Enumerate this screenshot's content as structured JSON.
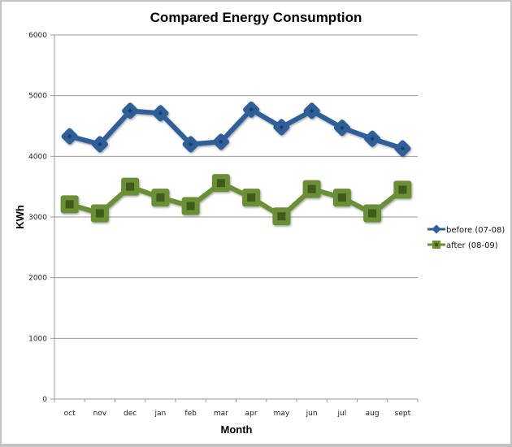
{
  "chart_data": {
    "type": "line",
    "title": "Compared Energy Consumption",
    "xlabel": "Month",
    "ylabel": "KWh",
    "ylim": [
      0,
      6000
    ],
    "yticks": [
      0,
      1000,
      2000,
      3000,
      4000,
      5000,
      6000
    ],
    "grid": true,
    "legend_position": "right",
    "categories": [
      "oct",
      "nov",
      "dec",
      "jan",
      "feb",
      "mar",
      "apr",
      "may",
      "jun",
      "jul",
      "aug",
      "sept"
    ],
    "series": [
      {
        "name": "before (07-08)",
        "color": "#2f5f99",
        "marker": "diamond",
        "values": [
          4330,
          4200,
          4750,
          4710,
          4200,
          4240,
          4770,
          4480,
          4750,
          4470,
          4290,
          4130
        ]
      },
      {
        "name": "after (08-09)",
        "color": "#6a8f34",
        "marker": "square",
        "values": [
          3210,
          3060,
          3500,
          3320,
          3180,
          3560,
          3320,
          3010,
          3460,
          3320,
          3060,
          3450
        ]
      }
    ]
  }
}
